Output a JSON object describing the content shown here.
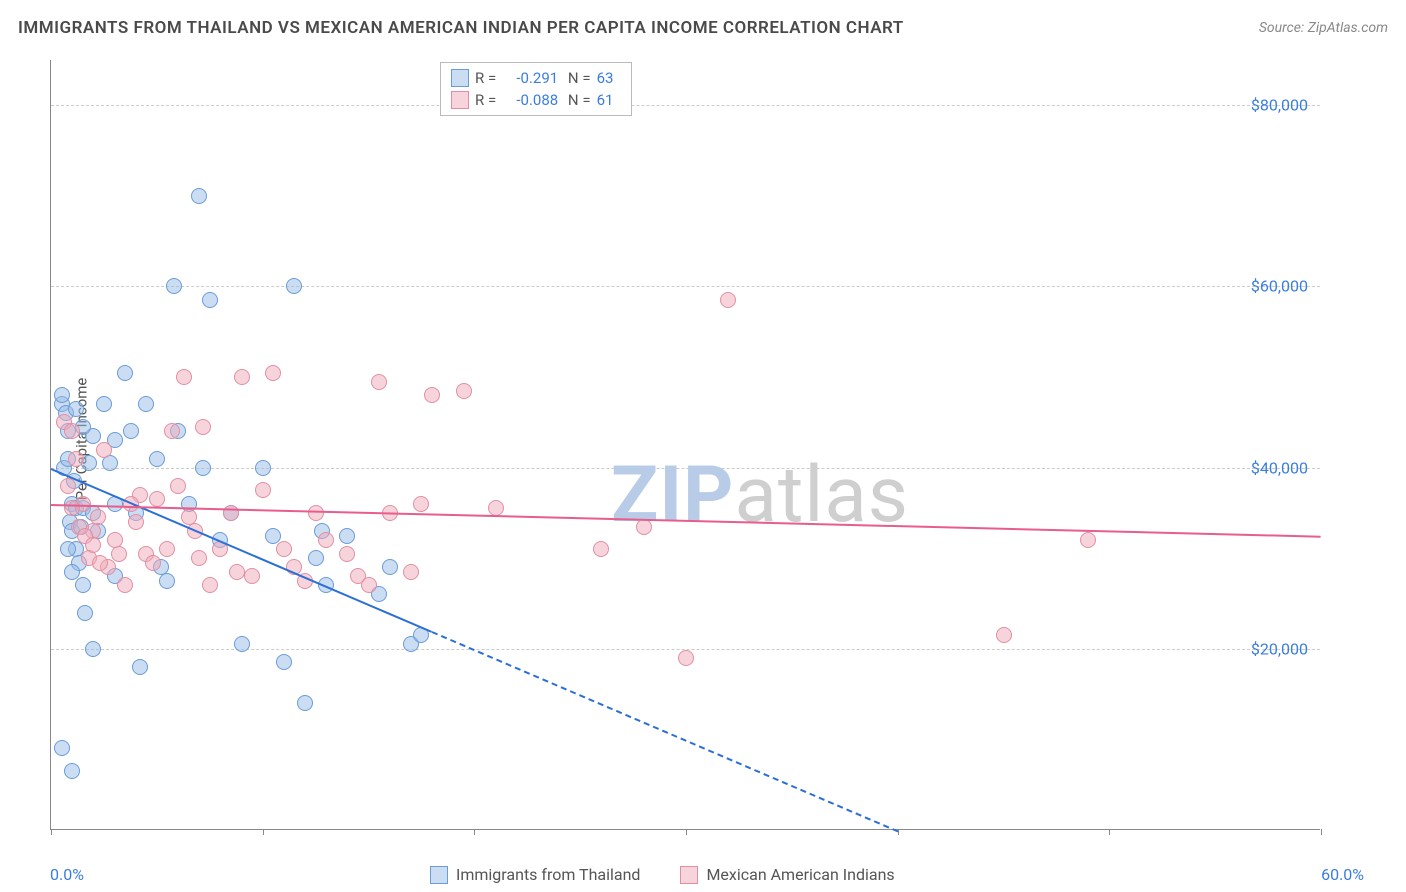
{
  "title": "IMMIGRANTS FROM THAILAND VS MEXICAN AMERICAN INDIAN PER CAPITA INCOME CORRELATION CHART",
  "source": "Source: ZipAtlas.com",
  "watermark_a": "ZIP",
  "watermark_b": "atlas",
  "chart": {
    "type": "scatter",
    "ylabel": "Per Capita Income",
    "xlim": [
      0,
      60
    ],
    "ylim": [
      0,
      85000
    ],
    "x_label_min": "0.0%",
    "x_label_max": "60.0%",
    "y_ticks": [
      20000,
      40000,
      60000,
      80000
    ],
    "y_tick_labels": [
      "$20,000",
      "$40,000",
      "$60,000",
      "$80,000"
    ],
    "x_tick_count": 7,
    "background_color": "#ffffff",
    "grid_color": "#cccccc",
    "axis_color": "#888888",
    "ylabel_color": "#3a7de0",
    "marker_radius": 8,
    "series": [
      {
        "name": "Immigrants from Thailand",
        "fill": "rgba(151,187,229,0.5)",
        "stroke": "#6a9cd8",
        "R": "-0.291",
        "N": "63",
        "trend": {
          "x1": 0,
          "y1": 40000,
          "x2": 18,
          "y2": 22000,
          "extend_x2": 40,
          "extend_y2": 0
        },
        "trend_color": "#2b6fd6",
        "points": [
          [
            0.5,
            47000
          ],
          [
            0.5,
            48000
          ],
          [
            0.7,
            46000
          ],
          [
            0.8,
            44000
          ],
          [
            0.6,
            40000
          ],
          [
            0.8,
            41000
          ],
          [
            1.0,
            36000
          ],
          [
            1.1,
            38500
          ],
          [
            1.2,
            35500
          ],
          [
            0.9,
            34000
          ],
          [
            1.0,
            33000
          ],
          [
            1.2,
            31000
          ],
          [
            1.3,
            29500
          ],
          [
            1.4,
            33500
          ],
          [
            1.5,
            35500
          ],
          [
            1.6,
            24000
          ],
          [
            1.5,
            27000
          ],
          [
            2.0,
            20000
          ],
          [
            2.0,
            35000
          ],
          [
            2.2,
            33000
          ],
          [
            2.5,
            47000
          ],
          [
            2.8,
            40500
          ],
          [
            3.0,
            36000
          ],
          [
            3.0,
            43000
          ],
          [
            3.5,
            50500
          ],
          [
            3.8,
            44000
          ],
          [
            4.0,
            35000
          ],
          [
            4.5,
            47000
          ],
          [
            5.0,
            41000
          ],
          [
            5.2,
            29000
          ],
          [
            5.5,
            27500
          ],
          [
            5.8,
            60000
          ],
          [
            6.0,
            44000
          ],
          [
            6.5,
            36000
          ],
          [
            7.0,
            70000
          ],
          [
            7.2,
            40000
          ],
          [
            7.5,
            58500
          ],
          [
            8.0,
            32000
          ],
          [
            8.5,
            35000
          ],
          [
            9.0,
            20500
          ],
          [
            10.0,
            40000
          ],
          [
            10.5,
            32500
          ],
          [
            11.0,
            18500
          ],
          [
            11.5,
            60000
          ],
          [
            12.0,
            14000
          ],
          [
            12.5,
            30000
          ],
          [
            12.8,
            33000
          ],
          [
            13.0,
            27000
          ],
          [
            14.0,
            32500
          ],
          [
            15.5,
            26000
          ],
          [
            16.0,
            29000
          ],
          [
            17.0,
            20500
          ],
          [
            17.5,
            21500
          ],
          [
            0.5,
            9000
          ],
          [
            1.0,
            6500
          ],
          [
            4.2,
            18000
          ],
          [
            3.0,
            28000
          ],
          [
            2.0,
            43500
          ],
          [
            1.8,
            40500
          ],
          [
            1.5,
            44500
          ],
          [
            1.2,
            46500
          ],
          [
            0.8,
            31000
          ],
          [
            1.0,
            28500
          ]
        ]
      },
      {
        "name": "Mexican American Indians",
        "fill": "rgba(240,170,185,0.5)",
        "stroke": "#e28fa3",
        "R": "-0.088",
        "N": "61",
        "trend": {
          "x1": 0,
          "y1": 36000,
          "x2": 60,
          "y2": 32500
        },
        "trend_color": "#e95d8c",
        "points": [
          [
            0.6,
            45000
          ],
          [
            0.8,
            38000
          ],
          [
            1.0,
            44000
          ],
          [
            1.2,
            41000
          ],
          [
            1.5,
            36000
          ],
          [
            1.8,
            30000
          ],
          [
            2.0,
            33000
          ],
          [
            2.2,
            34500
          ],
          [
            2.5,
            42000
          ],
          [
            2.7,
            29000
          ],
          [
            3.0,
            32000
          ],
          [
            3.2,
            30500
          ],
          [
            3.5,
            27000
          ],
          [
            4.0,
            34000
          ],
          [
            4.2,
            37000
          ],
          [
            4.5,
            30500
          ],
          [
            5.0,
            36500
          ],
          [
            5.5,
            31000
          ],
          [
            5.7,
            44000
          ],
          [
            6.0,
            38000
          ],
          [
            6.3,
            50000
          ],
          [
            6.5,
            34500
          ],
          [
            7.0,
            30000
          ],
          [
            7.2,
            44500
          ],
          [
            7.5,
            27000
          ],
          [
            8.0,
            31000
          ],
          [
            8.5,
            35000
          ],
          [
            9.0,
            50000
          ],
          [
            9.5,
            28000
          ],
          [
            10.0,
            37500
          ],
          [
            10.5,
            50500
          ],
          [
            11.0,
            31000
          ],
          [
            11.5,
            29000
          ],
          [
            12.0,
            27500
          ],
          [
            12.5,
            35000
          ],
          [
            13.0,
            32000
          ],
          [
            14.0,
            30500
          ],
          [
            14.5,
            28000
          ],
          [
            15.0,
            27000
          ],
          [
            15.5,
            49500
          ],
          [
            16.0,
            35000
          ],
          [
            17.0,
            28500
          ],
          [
            17.5,
            36000
          ],
          [
            18.0,
            48000
          ],
          [
            19.5,
            48500
          ],
          [
            21.0,
            35500
          ],
          [
            26.0,
            31000
          ],
          [
            28.0,
            33500
          ],
          [
            30.0,
            19000
          ],
          [
            32.0,
            58500
          ],
          [
            45.0,
            21500
          ],
          [
            49.0,
            32000
          ],
          [
            1.0,
            35500
          ],
          [
            1.3,
            33500
          ],
          [
            1.6,
            32500
          ],
          [
            2.0,
            31500
          ],
          [
            2.3,
            29500
          ],
          [
            3.8,
            36000
          ],
          [
            4.8,
            29500
          ],
          [
            6.8,
            33000
          ],
          [
            8.8,
            28500
          ]
        ]
      }
    ]
  }
}
